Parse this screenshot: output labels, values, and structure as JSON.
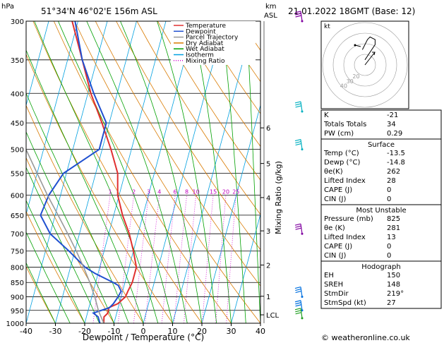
{
  "header": {
    "location": "51°34'N  46°02'E  156m  ASL",
    "datetime": "21.01.2022  18GMT  (Base: 12)",
    "hpa_unit": "hPa",
    "km_unit": "km",
    "asl_unit": "ASL",
    "xlabel": "Dewpoint / Temperature (°C)",
    "mixing_label": "Mixing Ratio (g/kg)",
    "watermark": "© weatheronline.co.uk"
  },
  "legend": [
    {
      "label": "Temperature",
      "color": "#e03030",
      "style": "solid"
    },
    {
      "label": "Dewpoint",
      "color": "#2050d0",
      "style": "solid"
    },
    {
      "label": "Parcel Trajectory",
      "color": "#999999",
      "style": "solid"
    },
    {
      "label": "Dry Adiabat",
      "color": "#d97a00",
      "style": "solid"
    },
    {
      "label": "Wet Adiabat",
      "color": "#00a000",
      "style": "solid"
    },
    {
      "label": "Isotherm",
      "color": "#00a0e0",
      "style": "solid"
    },
    {
      "label": "Mixing Ratio",
      "color": "#d000d0",
      "style": "dotted"
    }
  ],
  "chart_data": {
    "type": "line",
    "title": "51°34'N  46°02'E  156m  ASL",
    "xlabel": "Dewpoint / Temperature (°C)",
    "ylabel": "hPa",
    "xlim": [
      -40,
      40
    ],
    "ylim": [
      1000,
      300
    ],
    "y_scale": "log",
    "pressure_ticks": [
      300,
      350,
      400,
      450,
      500,
      550,
      600,
      650,
      700,
      750,
      800,
      850,
      900,
      950,
      1000
    ],
    "temp_ticks": [
      -40,
      -30,
      -20,
      -10,
      0,
      10,
      20,
      30,
      40
    ],
    "km_ticks": [
      {
        "label": "1",
        "p": 898
      },
      {
        "label": "2",
        "p": 793
      },
      {
        "label": "3",
        "p": 692
      },
      {
        "label": "4",
        "p": 606
      },
      {
        "label": "5",
        "p": 529
      },
      {
        "label": "6",
        "p": 459
      },
      {
        "label": "LCL",
        "p": 967
      }
    ],
    "mixing_ratio_labels": [
      "1",
      "2",
      "3",
      "4",
      "6",
      "8",
      "10",
      "15",
      "20",
      "25"
    ],
    "series": [
      {
        "name": "Temperature",
        "points": [
          [
            1000,
            -13.5
          ],
          [
            975,
            -14
          ],
          [
            960,
            -13
          ],
          [
            940,
            -13.2
          ],
          [
            925,
            -10.5
          ],
          [
            900,
            -8.5
          ],
          [
            880,
            -8.2
          ],
          [
            850,
            -7.5
          ],
          [
            800,
            -7.5
          ],
          [
            750,
            -10
          ],
          [
            700,
            -13
          ],
          [
            650,
            -17
          ],
          [
            600,
            -20.5
          ],
          [
            550,
            -22.5
          ],
          [
            500,
            -27
          ],
          [
            450,
            -32.5
          ],
          [
            400,
            -39
          ],
          [
            350,
            -45
          ],
          [
            300,
            -52
          ]
        ]
      },
      {
        "name": "Dewpoint",
        "points": [
          [
            1000,
            -14.8
          ],
          [
            975,
            -16
          ],
          [
            960,
            -18
          ],
          [
            940,
            -13
          ],
          [
            925,
            -12
          ],
          [
            900,
            -11
          ],
          [
            880,
            -10.5
          ],
          [
            860,
            -12
          ],
          [
            850,
            -14
          ],
          [
            820,
            -21
          ],
          [
            800,
            -25
          ],
          [
            750,
            -32
          ],
          [
            700,
            -40
          ],
          [
            650,
            -45
          ],
          [
            600,
            -44
          ],
          [
            550,
            -41
          ],
          [
            500,
            -31
          ],
          [
            450,
            -31
          ],
          [
            400,
            -38
          ],
          [
            350,
            -45
          ],
          [
            300,
            -51
          ]
        ]
      },
      {
        "name": "Parcel Trajectory",
        "points": [
          [
            1000,
            -13.5
          ],
          [
            967,
            -15.5
          ],
          [
            950,
            -16.5
          ],
          [
            900,
            -19
          ],
          [
            850,
            -22
          ],
          [
            800,
            -25.5
          ],
          [
            750,
            -29.5
          ],
          [
            700,
            -34
          ],
          [
            650,
            -39
          ],
          [
            600,
            -44.5
          ],
          [
            550,
            -50
          ],
          [
            500,
            -56
          ],
          [
            450,
            -62.5
          ]
        ]
      }
    ]
  },
  "wind_barbs": [
    {
      "p": 300,
      "color": "#8000a0"
    },
    {
      "p": 430,
      "color": "#00b0c0"
    },
    {
      "p": 500,
      "color": "#00b0c0"
    },
    {
      "p": 700,
      "color": "#8000a0"
    },
    {
      "p": 900,
      "color": "#0070e0"
    },
    {
      "p": 950,
      "color": "#0070e0"
    },
    {
      "p": 980,
      "color": "#20a020"
    }
  ],
  "hodograph": {
    "unit": "kt",
    "ring_labels": [
      "20",
      "30",
      "40"
    ],
    "points": [
      [
        -2,
        12
      ],
      [
        2,
        20
      ],
      [
        4,
        22
      ],
      [
        8,
        20
      ],
      [
        8,
        16
      ],
      [
        4,
        10
      ],
      [
        0,
        4
      ]
    ]
  },
  "indices": {
    "top": [
      {
        "k": "K",
        "v": "-21"
      },
      {
        "k": "Totals Totals",
        "v": "34"
      },
      {
        "k": "PW (cm)",
        "v": "0.29"
      }
    ],
    "surface": {
      "title": "Surface",
      "rows": [
        {
          "k": "Temp (°C)",
          "v": "-13.5"
        },
        {
          "k": "Dewp (°C)",
          "v": "-14.8"
        },
        {
          "k": "θe(K)",
          "v": "262"
        },
        {
          "k": "Lifted Index",
          "v": "28"
        },
        {
          "k": "CAPE (J)",
          "v": "0"
        },
        {
          "k": "CIN (J)",
          "v": "0"
        }
      ]
    },
    "unstable": {
      "title": "Most Unstable",
      "rows": [
        {
          "k": "Pressure (mb)",
          "v": "825"
        },
        {
          "k": "θe (K)",
          "v": "281"
        },
        {
          "k": "Lifted Index",
          "v": "13"
        },
        {
          "k": "CAPE (J)",
          "v": "0"
        },
        {
          "k": "CIN (J)",
          "v": "0"
        }
      ]
    },
    "hodo": {
      "title": "Hodograph",
      "rows": [
        {
          "k": "EH",
          "v": "150"
        },
        {
          "k": "SREH",
          "v": "148"
        },
        {
          "k": "StmDir",
          "v": "219°"
        },
        {
          "k": "StmSpd (kt)",
          "v": "27"
        }
      ]
    }
  }
}
